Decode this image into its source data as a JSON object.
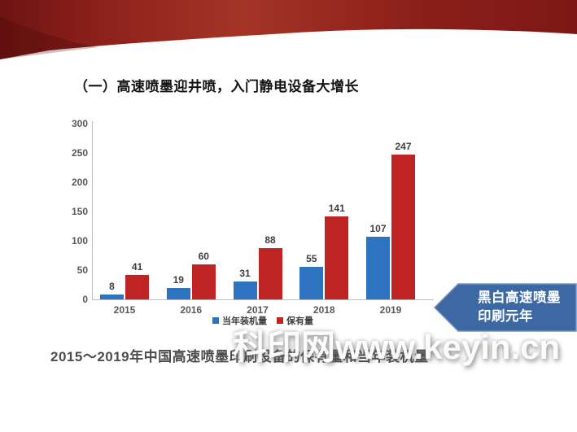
{
  "slide": {
    "title": "（一）高速喷墨迎井喷，入门静电设备大增长",
    "caption": "2015～2019年中国高速喷墨印刷设备的保有量和当年装机量",
    "watermark": "科印网www.keyin.cn"
  },
  "callout": {
    "line1": "黑白高速喷墨",
    "line2": "印刷元年",
    "fill_color": "#3c69a3",
    "edge_color": "#7391bc"
  },
  "theme": {
    "ribbon_dark": "#6d1412",
    "ribbon_mid": "#a33426",
    "ribbon_end": "#7c1815",
    "axis_color": "#bdbdbd"
  },
  "chart_data": {
    "type": "bar",
    "title": "",
    "xlabel": "",
    "ylabel": "",
    "categories": [
      "2015",
      "2016",
      "2017",
      "2018",
      "2019"
    ],
    "series": [
      {
        "name": "当年装机量",
        "color": "#2e73bf",
        "values": [
          8,
          19,
          31,
          55,
          107
        ]
      },
      {
        "name": "保有量",
        "color": "#be2423",
        "values": [
          41,
          60,
          88,
          141,
          247
        ]
      }
    ],
    "ylim": [
      0,
      300
    ],
    "yticks": [
      0,
      50,
      100,
      150,
      200,
      250,
      300
    ],
    "legend_position": "bottom",
    "grid": false
  }
}
